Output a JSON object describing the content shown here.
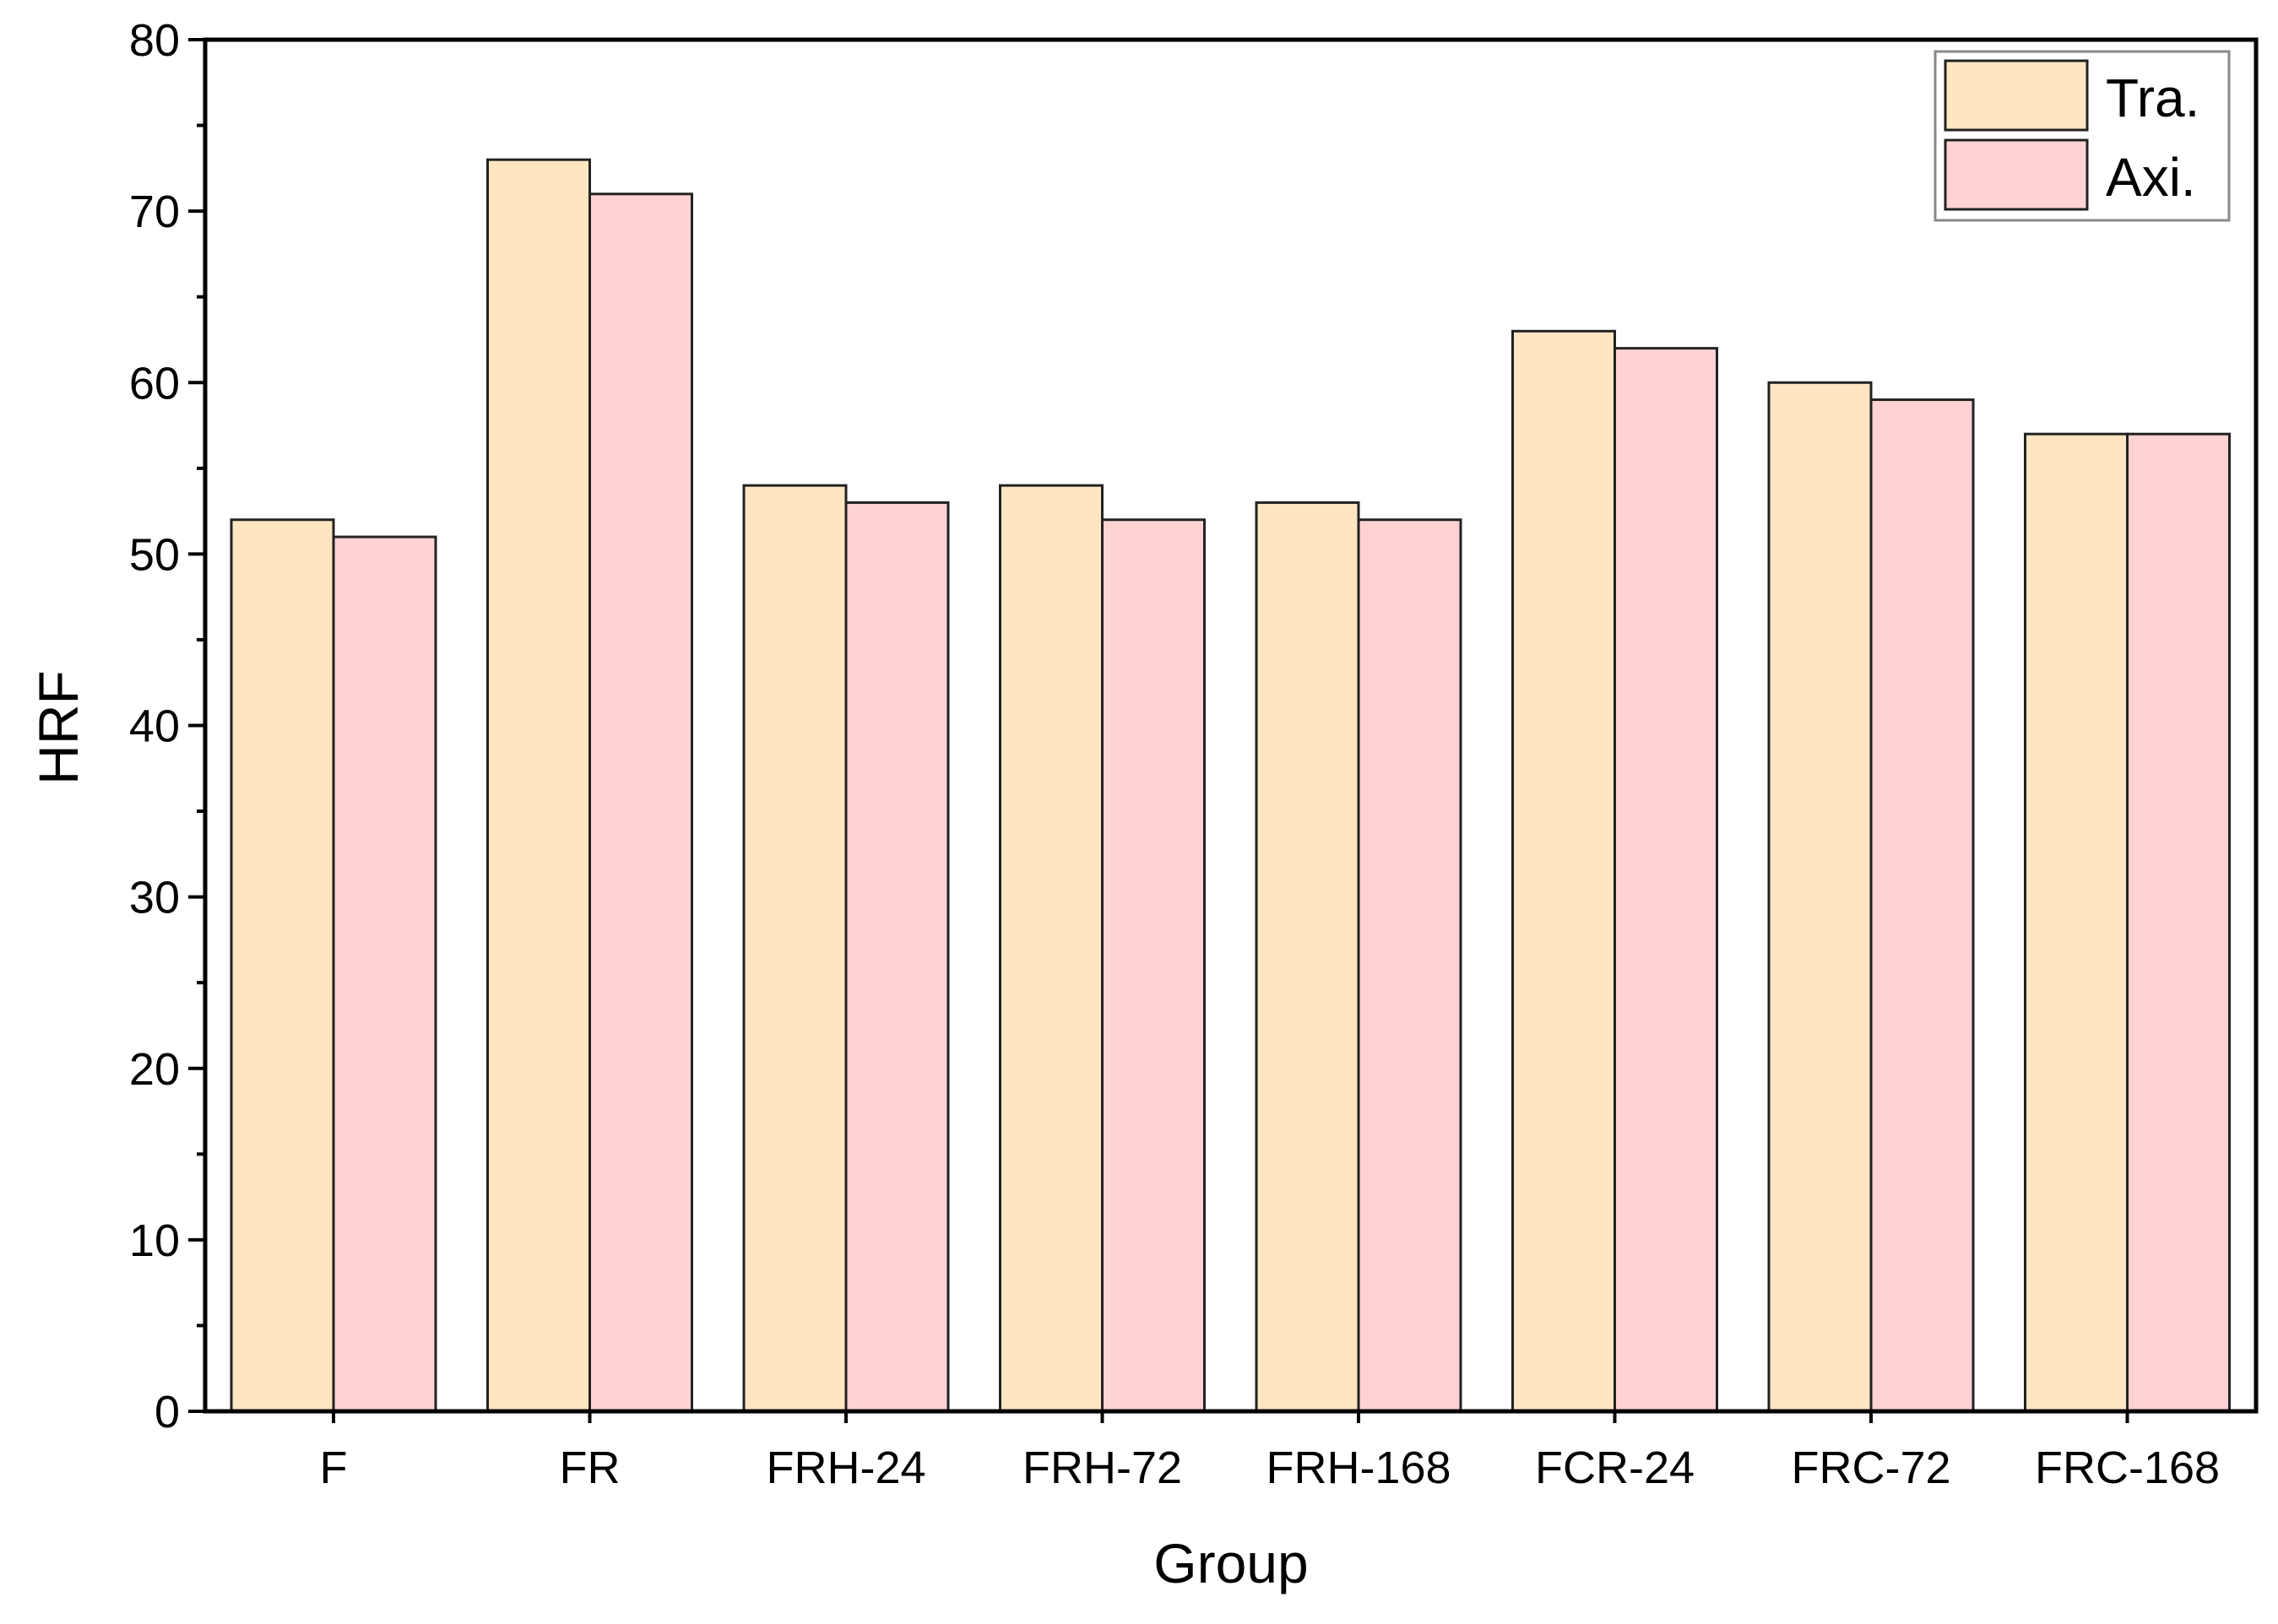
{
  "chart_data": {
    "type": "bar",
    "title": "",
    "xlabel": "Group",
    "ylabel": "HRF",
    "ylim": [
      0,
      80
    ],
    "yticks": [
      0,
      10,
      20,
      30,
      40,
      50,
      60,
      70,
      80
    ],
    "grid": false,
    "legend_position": "top-right",
    "categories": [
      "F",
      "FR",
      "FRH-24",
      "FRH-72",
      "FRH-168",
      "FCR-24",
      "FRC-72",
      "FRC-168"
    ],
    "series": [
      {
        "name": "Tra.",
        "color": "#FFE6C2",
        "values": [
          52,
          73,
          54,
          54,
          53,
          63,
          60,
          57
        ]
      },
      {
        "name": "Axi.",
        "color": "#FFD3D4",
        "values": [
          51,
          71,
          53,
          52,
          52,
          62,
          59,
          57
        ]
      }
    ]
  }
}
